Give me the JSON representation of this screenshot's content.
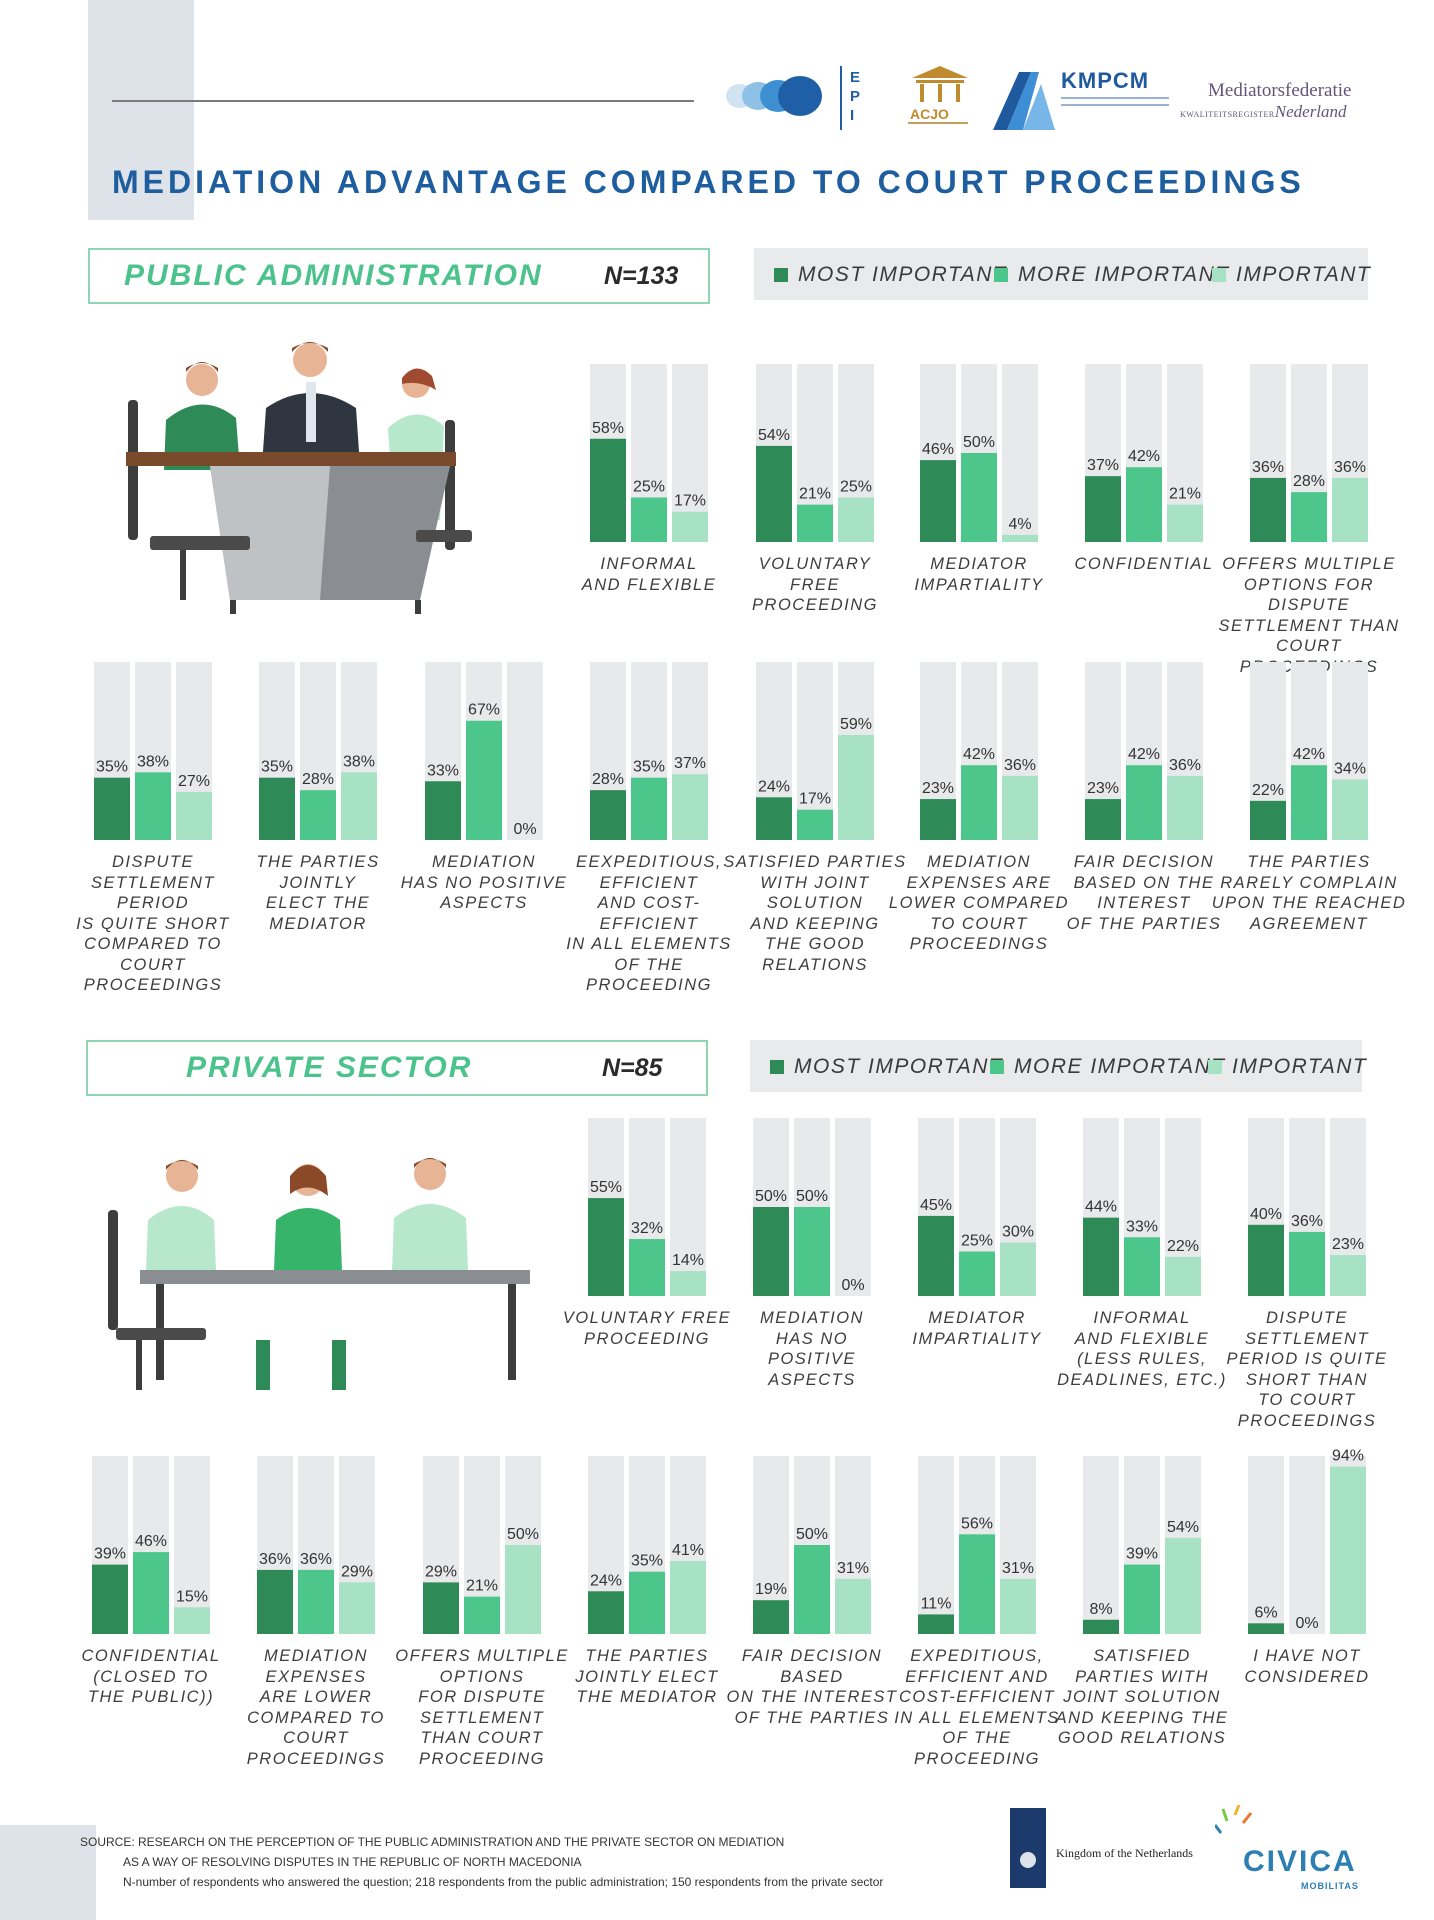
{
  "header": {
    "title": "MEDIATION ADVANTAGE COMPARED TO COURT PROCEEDINGS",
    "logos": {
      "epi": "EPI",
      "acjo": "ACJO",
      "kmpcm": "KMPCM",
      "mediators_line1": "Mediatorsfederatie",
      "mediators_small": "KWALITEITSREGISTER",
      "mediators_line2": "Nederland"
    }
  },
  "legend": {
    "most": "MOST IMPORTANT",
    "more": "MORE IMPORTANT",
    "important": "IMPORTANT"
  },
  "colors": {
    "most": "#2e8b57",
    "more": "#4cc68a",
    "important": "#a8e2c5",
    "track": "#e8e9ea",
    "title": "#1e5d9e",
    "section_title": "#4cc28c",
    "section_border": "#8fd4b3"
  },
  "sections": {
    "public": {
      "title": "PUBLIC ADMINISTRATION",
      "n": "N=133"
    },
    "private": {
      "title": "PRIVATE SECTOR",
      "n": "N=85"
    }
  },
  "chart_data": [
    {
      "type": "bar",
      "group": "PUBLIC ADMINISTRATION",
      "series_names": [
        "MOST IMPORTANT",
        "MORE IMPORTANT",
        "IMPORTANT"
      ],
      "ylim": [
        0,
        100
      ],
      "grid": false,
      "legend_placement": "top-right",
      "categories": [
        {
          "label": "INFORMAL\nAND FLEXIBLE",
          "values": [
            58,
            25,
            17
          ]
        },
        {
          "label": "VOLUNTARY\nFREE\nPROCEEDING",
          "values": [
            54,
            21,
            25
          ]
        },
        {
          "label": "MEDIATOR\nIMPARTIALITY",
          "values": [
            46,
            50,
            4
          ]
        },
        {
          "label": "CONFIDENTIAL",
          "values": [
            37,
            42,
            21
          ]
        },
        {
          "label": "OFFERS MULTIPLE\nOPTIONS FOR DISPUTE\nSETTLEMENT THAN\nCOURT PROCEEDINGS",
          "values": [
            36,
            28,
            36
          ]
        },
        {
          "label": "DISPUTE\nSETTLEMENT\nPERIOD\nIS QUITE SHORT\nCOMPARED TO COURT\nPROCEEDINGS",
          "values": [
            35,
            38,
            27
          ]
        },
        {
          "label": "THE PARTIES\nJOINTLY\nELECT THE\nMEDIATOR",
          "values": [
            35,
            28,
            38
          ]
        },
        {
          "label": "MEDIATION\nHAS NO POSITIVE\nASPECTS",
          "values": [
            33,
            67,
            0
          ]
        },
        {
          "label": "EEXPEDITIOUS,\nEFFICIENT\nAND COST-EFFICIENT\nIN ALL ELEMENTS\nOF THE\nPROCEEDING",
          "values": [
            28,
            35,
            37
          ]
        },
        {
          "label": "SATISFIED PARTIES\nWITH JOINT\nSOLUTION\nAND KEEPING\nTHE GOOD\nRELATIONS",
          "values": [
            24,
            17,
            59
          ]
        },
        {
          "label": "MEDIATION\nEXPENSES ARE\nLOWER COMPARED\nTO COURT\nPROCEEDINGS",
          "values": [
            23,
            42,
            36
          ]
        },
        {
          "label": "FAIR DECISION\nBASED ON THE\nINTEREST\nOF THE PARTIES",
          "values": [
            23,
            42,
            36
          ]
        },
        {
          "label": "THE PARTIES\nRARELY COMPLAIN\nUPON THE REACHED\nAGREEMENT",
          "values": [
            22,
            42,
            34
          ]
        }
      ]
    },
    {
      "type": "bar",
      "group": "PRIVATE SECTOR",
      "series_names": [
        "MOST IMPORTANT",
        "MORE IMPORTANT",
        "IMPORTANT"
      ],
      "ylim": [
        0,
        100
      ],
      "grid": false,
      "legend_placement": "top-right",
      "categories": [
        {
          "label": "VOLUNTARY FREE\nPROCEEDING",
          "values": [
            55,
            32,
            14
          ]
        },
        {
          "label": "MEDIATION\nHAS NO\nPOSITIVE\nASPECTS",
          "values": [
            50,
            50,
            0
          ]
        },
        {
          "label": "MEDIATOR\nIMPARTIALITY",
          "values": [
            45,
            25,
            30
          ]
        },
        {
          "label": "INFORMAL\nAND FLEXIBLE\n(LESS RULES,\nDEADLINES, ETC.)",
          "values": [
            44,
            33,
            22
          ]
        },
        {
          "label": "DISPUTE\nSETTLEMENT\nPERIOD IS QUITE\nSHORT THAN\nTO COURT\nPROCEEDINGS",
          "values": [
            40,
            36,
            23
          ]
        },
        {
          "label": "CONFIDENTIAL\n(CLOSED TO\nTHE PUBLIC))",
          "values": [
            39,
            46,
            15
          ]
        },
        {
          "label": "MEDIATION\nEXPENSES\nARE LOWER\nCOMPARED TO\nCOURT\nPROCEEDINGS",
          "values": [
            36,
            36,
            29
          ]
        },
        {
          "label": "OFFERS MULTIPLE\nOPTIONS\nFOR DISPUTE\nSETTLEMENT\nTHAN COURT\nPROCEEDING",
          "values": [
            29,
            21,
            50
          ]
        },
        {
          "label": "THE PARTIES\nJOINTLY ELECT\nTHE MEDIATOR",
          "values": [
            24,
            35,
            41
          ]
        },
        {
          "label": "FAIR DECISION\nBASED\nON THE INTEREST\nOF THE PARTIES",
          "values": [
            19,
            50,
            31
          ]
        },
        {
          "label": "EXPEDITIOUS,\nEFFICIENT AND\nCOST-EFFICIENT\nIN ALL ELEMENTS\nOF THE\nPROCEEDING",
          "values": [
            11,
            56,
            31
          ]
        },
        {
          "label": "SATISFIED\nPARTIES WITH\nJOINT SOLUTION\nAND KEEPING THE\nGOOD RELATIONS",
          "values": [
            8,
            39,
            54
          ]
        },
        {
          "label": "I HAVE NOT\nCONSIDERED",
          "values": [
            6,
            0,
            94
          ]
        }
      ]
    }
  ],
  "footer": {
    "source_line1": "SOURCE: RESEARCH ON THE PERCEPTION OF THE PUBLIC ADMINISTRATION AND THE PRIVATE SECTOR ON MEDIATION",
    "source_line2": "AS A WAY OF RESOLVING DISPUTES IN THE REPUBLIC OF NORTH MACEDONIA",
    "source_line3": "N-number of respondents who answered the question; 218 respondents from the public administration; 150 respondents from the private sector",
    "nl_logo_text": "Kingdom of the Netherlands",
    "civica_text": "CIVICA",
    "civica_sub": "MOBILITAS"
  }
}
